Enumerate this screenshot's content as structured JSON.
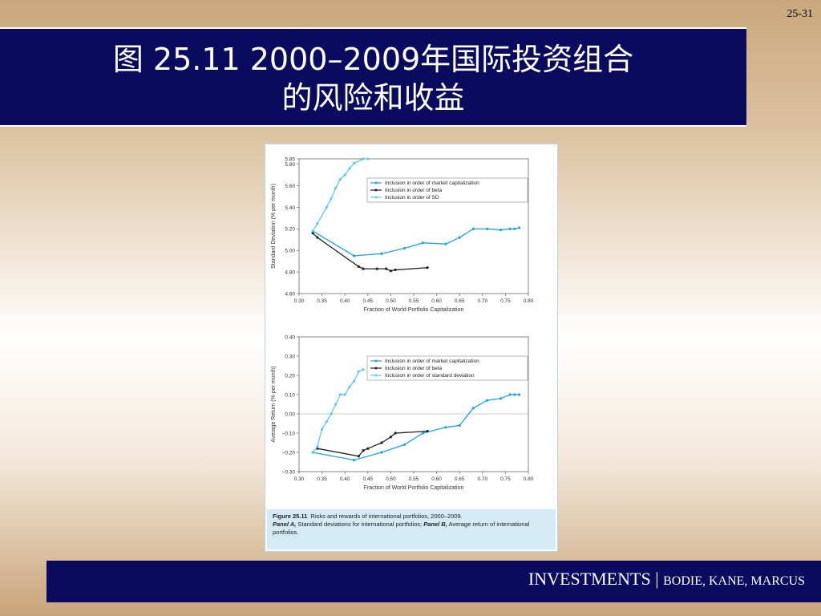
{
  "slide_number": "25-31",
  "title_line1": "图 25.11   2000–2009年国际投资组合",
  "title_line2": "的风险和收益",
  "footer": {
    "brand": "INVESTMENTS",
    "separator": " | ",
    "authors": "BODIE, KANE, MARCUS"
  },
  "caption": {
    "figure_label": "Figure 25.11",
    "figure_title": "Risks and rewards of international portfolios, 2000–2009.",
    "panel_a_label": "Panel A,",
    "panel_a_text": "Standard deviations for international portfolios;",
    "panel_b_label": "Panel B,",
    "panel_b_text": "Average return of international portfolios."
  },
  "colors": {
    "market_cap": "#1fa3d8",
    "beta": "#222222",
    "sd": "#5cc8ef",
    "navy": "#0a0a5e"
  },
  "chart_data": [
    {
      "type": "line",
      "xlabel": "Fraction of World Portfolio Capitalization",
      "ylabel": "Standard Deviation (% per month)",
      "xlim": [
        0.3,
        0.8
      ],
      "ylim": [
        4.6,
        5.85
      ],
      "xticks": [
        "0.30",
        "0.35",
        "0.40",
        "0.45",
        "0.50",
        "0.55",
        "0.60",
        "0.65",
        "0.70",
        "0.75",
        "0.80"
      ],
      "yticks": [
        "4.60",
        "4.80",
        "5.00",
        "5.20",
        "5.40",
        "5.60",
        "5.80",
        "5.85"
      ],
      "legend_position": "top-right",
      "series": [
        {
          "name": "Inclusion in order of market capitalization",
          "x": [
            0.33,
            0.42,
            0.48,
            0.53,
            0.57,
            0.62,
            0.65,
            0.68,
            0.71,
            0.74,
            0.76,
            0.77,
            0.78
          ],
          "y": [
            5.18,
            4.95,
            4.97,
            5.02,
            5.07,
            5.06,
            5.12,
            5.2,
            5.2,
            5.19,
            5.2,
            5.2,
            5.21
          ]
        },
        {
          "name": "Inclusion in order of beta",
          "x": [
            0.33,
            0.34,
            0.43,
            0.44,
            0.47,
            0.49,
            0.5,
            0.51,
            0.58
          ],
          "y": [
            5.16,
            5.12,
            4.85,
            4.83,
            4.83,
            4.83,
            4.81,
            4.82,
            4.84
          ]
        },
        {
          "name": "Inclusion in order of SD",
          "x": [
            0.33,
            0.34,
            0.36,
            0.37,
            0.38,
            0.39,
            0.4,
            0.41,
            0.42,
            0.44,
            0.45
          ],
          "y": [
            5.18,
            5.25,
            5.4,
            5.48,
            5.58,
            5.66,
            5.7,
            5.76,
            5.81,
            5.87,
            5.87
          ]
        }
      ]
    },
    {
      "type": "line",
      "xlabel": "Fraction of World Portfolio Capitalization",
      "ylabel": "Average Return (% per month)",
      "xlim": [
        0.3,
        0.8
      ],
      "ylim": [
        -0.3,
        0.4
      ],
      "xticks": [
        "0.30",
        "0.35",
        "0.40",
        "0.45",
        "0.50",
        "0.55",
        "0.60",
        "0.65",
        "0.70",
        "0.75",
        "0.80"
      ],
      "yticks": [
        "−0.30",
        "−0.20",
        "−0.10",
        "0.00",
        "0.10",
        "0.20",
        "0.30",
        "0.40"
      ],
      "legend_position": "top-right",
      "series": [
        {
          "name": "Inclusion in order of market capitalization",
          "x": [
            0.33,
            0.42,
            0.48,
            0.53,
            0.57,
            0.62,
            0.65,
            0.68,
            0.71,
            0.74,
            0.76,
            0.77,
            0.78
          ],
          "y": [
            -0.2,
            -0.24,
            -0.2,
            -0.16,
            -0.1,
            -0.07,
            -0.06,
            0.03,
            0.07,
            0.08,
            0.1,
            0.1,
            0.1
          ]
        },
        {
          "name": "Inclusion in order of beta",
          "x": [
            0.34,
            0.43,
            0.44,
            0.45,
            0.48,
            0.5,
            0.51,
            0.58
          ],
          "y": [
            -0.18,
            -0.22,
            -0.19,
            -0.18,
            -0.15,
            -0.12,
            -0.1,
            -0.09
          ]
        },
        {
          "name": "Inclusion in order of standard deviation",
          "x": [
            0.33,
            0.34,
            0.35,
            0.36,
            0.37,
            0.38,
            0.39,
            0.4,
            0.41,
            0.42,
            0.43,
            0.44
          ],
          "y": [
            -0.2,
            -0.17,
            -0.08,
            -0.04,
            0.0,
            0.05,
            0.1,
            0.1,
            0.14,
            0.17,
            0.22,
            0.23
          ]
        }
      ]
    }
  ]
}
